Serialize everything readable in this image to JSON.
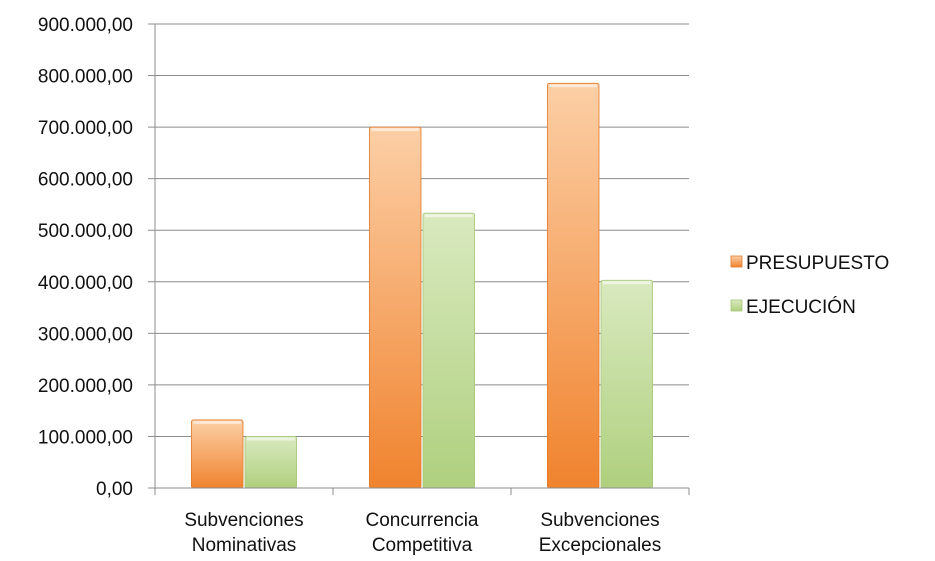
{
  "chart_data": {
    "type": "bar",
    "title": "",
    "xlabel": "",
    "ylabel": "",
    "categories": [
      [
        "Subvenciones",
        "Nominativas"
      ],
      [
        "Concurrencia",
        "Competitiva"
      ],
      [
        "Subvenciones",
        "Excepcionales"
      ]
    ],
    "series": [
      {
        "name": "PRESUPUESTO",
        "values": [
          132000,
          700000,
          785000
        ],
        "color": "#f39a4c"
      },
      {
        "name": "EJECUCIÓN",
        "values": [
          100000,
          533000,
          403000
        ],
        "color": "#bcd896"
      }
    ],
    "ylim": [
      0,
      900000
    ],
    "yticks": [
      0,
      100000,
      200000,
      300000,
      400000,
      500000,
      600000,
      700000,
      800000,
      900000
    ],
    "ytick_labels": [
      "0,00",
      "100.000,00",
      "200.000,00",
      "300.000,00",
      "400.000,00",
      "500.000,00",
      "600.000,00",
      "700.000,00",
      "800.000,00",
      "900.000,00"
    ],
    "grid": true,
    "legend_position": "right"
  }
}
